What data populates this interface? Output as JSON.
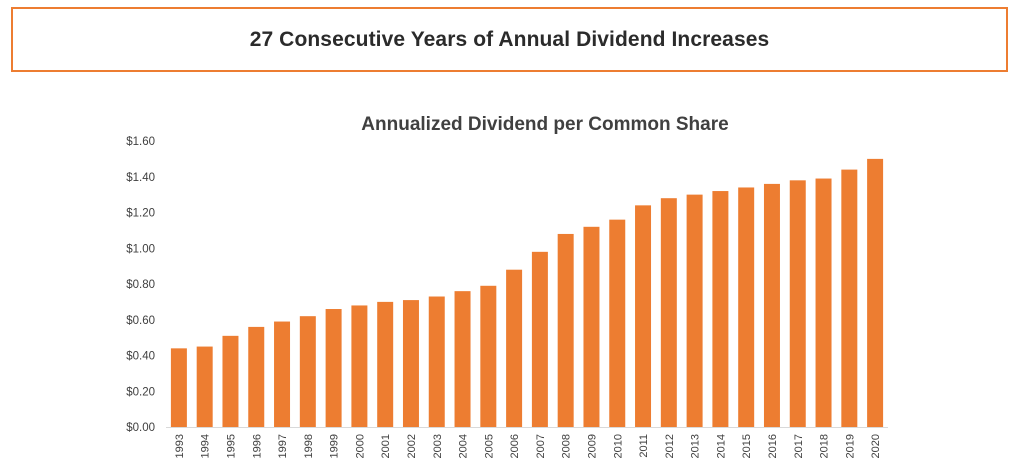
{
  "header": {
    "title": "27 Consecutive Years of Annual Dividend Increases"
  },
  "chart_data": {
    "type": "bar",
    "title": "Annualized Dividend per Common Share",
    "xlabel": "",
    "ylabel": "",
    "ylim": [
      0,
      1.6
    ],
    "y_ticks": [
      "$0.00",
      "$0.20",
      "$0.40",
      "$0.60",
      "$0.80",
      "$1.00",
      "$1.20",
      "$1.40",
      "$1.60"
    ],
    "y_tick_values": [
      0,
      0.2,
      0.4,
      0.6,
      0.8,
      1.0,
      1.2,
      1.4,
      1.6
    ],
    "grid": false,
    "legend": "none",
    "bar_color": "#ed7d31",
    "categories": [
      "1993",
      "1994",
      "1995",
      "1996",
      "1997",
      "1998",
      "1999",
      "2000",
      "2001",
      "2002",
      "2003",
      "2004",
      "2005",
      "2006",
      "2007",
      "2008",
      "2009",
      "2010",
      "2011",
      "2012",
      "2013",
      "2014",
      "2015",
      "2016",
      "2017",
      "2018",
      "2019",
      "2020"
    ],
    "values": [
      0.44,
      0.45,
      0.51,
      0.56,
      0.59,
      0.62,
      0.66,
      0.68,
      0.7,
      0.71,
      0.73,
      0.76,
      0.79,
      0.88,
      0.98,
      1.08,
      1.12,
      1.16,
      1.24,
      1.28,
      1.3,
      1.32,
      1.34,
      1.36,
      1.38,
      1.39,
      1.44,
      1.5
    ]
  }
}
